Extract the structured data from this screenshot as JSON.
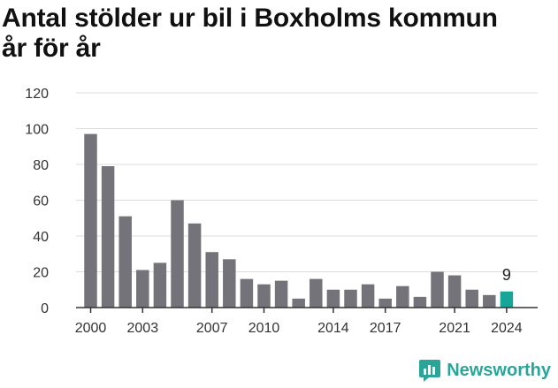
{
  "title_line1": "Antal stölder ur bil i Boxholms kommun",
  "title_line2": "år för år",
  "brand": {
    "name": "Newsworthy",
    "icon": "newsworthy-logo-icon",
    "color": "#2aa59a"
  },
  "colors": {
    "bar": "#75737a",
    "highlight": "#16a596",
    "grid": "#dddddd",
    "axis": "#333333",
    "text": "#333333"
  },
  "chart_data": {
    "type": "bar",
    "title": "Antal stölder ur bil i Boxholms kommun år för år",
    "xlabel": "",
    "ylabel": "",
    "categories": [
      "2000",
      "2001",
      "2002",
      "2003",
      "2004",
      "2005",
      "2006",
      "2007",
      "2008",
      "2009",
      "2010",
      "2011",
      "2012",
      "2013",
      "2014",
      "2015",
      "2016",
      "2017",
      "2018",
      "2019",
      "2020",
      "2021",
      "2022",
      "2023",
      "2024"
    ],
    "values": [
      97,
      79,
      51,
      21,
      25,
      60,
      47,
      31,
      27,
      16,
      13,
      15,
      5,
      16,
      10,
      10,
      13,
      5,
      12,
      6,
      20,
      18,
      10,
      7,
      9
    ],
    "ylim": [
      0,
      120
    ],
    "yticks": [
      0,
      20,
      40,
      60,
      80,
      100,
      120
    ],
    "xtick_labels": [
      "2000",
      "2003",
      "2007",
      "2010",
      "2014",
      "2017",
      "2021",
      "2024"
    ],
    "highlight_category": "2024",
    "data_labels": [
      {
        "category": "2024",
        "text": "9"
      }
    ],
    "grid": true,
    "legend": "none"
  }
}
